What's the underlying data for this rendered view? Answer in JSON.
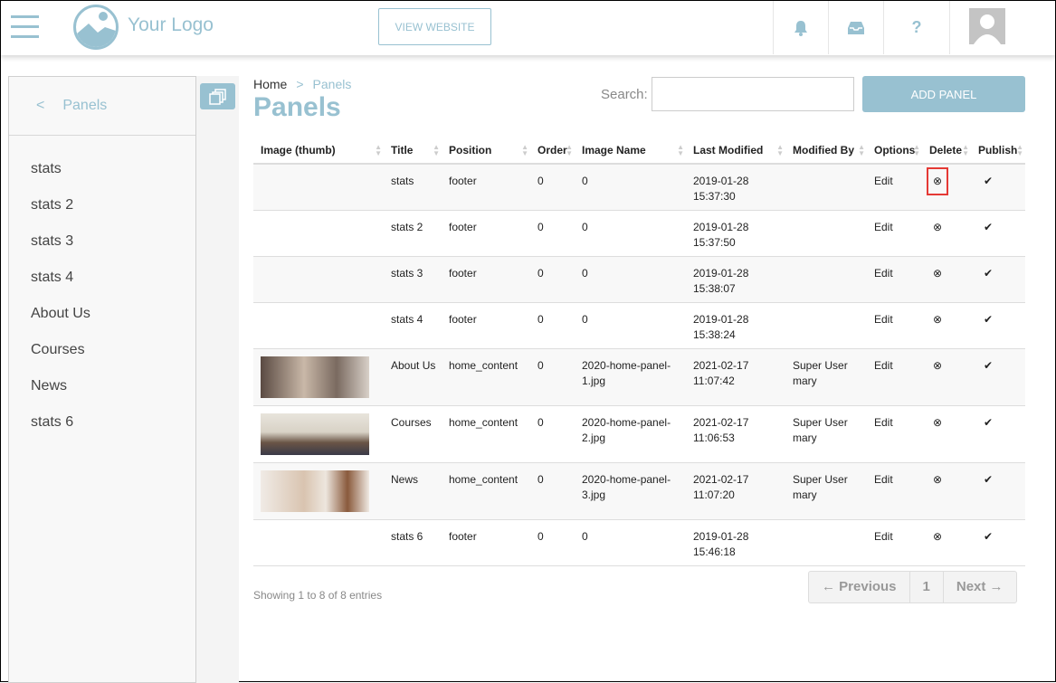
{
  "header": {
    "logo_text": "Your Logo",
    "view_website": "VIEW WEBSITE",
    "icons": [
      "bell-icon",
      "inbox-icon",
      "help-icon"
    ],
    "help_glyph": "?"
  },
  "sidebar": {
    "title": "Panels",
    "back_glyph": "<",
    "items": [
      "stats",
      "stats 2",
      "stats 3",
      "stats 4",
      "About Us",
      "Courses",
      "News",
      "stats 6"
    ]
  },
  "breadcrumb": {
    "home": "Home",
    "sep": ">",
    "current": "Panels"
  },
  "page_title": "Panels",
  "search": {
    "label": "Search:",
    "value": ""
  },
  "add_button": "ADD PANEL",
  "table": {
    "columns": [
      "Image (thumb)",
      "Title",
      "Position",
      "Order",
      "Image Name",
      "Last Modified",
      "Modified By",
      "Options",
      "Delete",
      "Publish"
    ],
    "rows": [
      {
        "image": "",
        "title": "stats",
        "position": "footer",
        "order": "0",
        "image_name": "0",
        "modified": "2019-01-28 15:37:30",
        "by": "",
        "options": "Edit"
      },
      {
        "image": "",
        "title": "stats 2",
        "position": "footer",
        "order": "0",
        "image_name": "0",
        "modified": "2019-01-28 15:37:50",
        "by": "",
        "options": "Edit"
      },
      {
        "image": "",
        "title": "stats 3",
        "position": "footer",
        "order": "0",
        "image_name": "0",
        "modified": "2019-01-28 15:38:07",
        "by": "",
        "options": "Edit"
      },
      {
        "image": "",
        "title": "stats 4",
        "position": "footer",
        "order": "0",
        "image_name": "0",
        "modified": "2019-01-28 15:38:24",
        "by": "",
        "options": "Edit"
      },
      {
        "image": "classroom-photo",
        "title": "About Us",
        "position": "home_content",
        "order": "0",
        "image_name": "2020-home-panel-1.jpg",
        "modified": "2021-02-17 11:07:42",
        "by": "Super User mary",
        "options": "Edit"
      },
      {
        "image": "lecture-photo",
        "title": "Courses",
        "position": "home_content",
        "order": "0",
        "image_name": "2020-home-panel-2.jpg",
        "modified": "2021-02-17 11:06:53",
        "by": "Super User mary",
        "options": "Edit"
      },
      {
        "image": "people-photo",
        "title": "News",
        "position": "home_content",
        "order": "0",
        "image_name": "2020-home-panel-3.jpg",
        "modified": "2021-02-17 11:07:20",
        "by": "Super User mary",
        "options": "Edit"
      },
      {
        "image": "",
        "title": "stats 6",
        "position": "footer",
        "order": "0",
        "image_name": "0",
        "modified": "2019-01-28 15:46:18",
        "by": "",
        "options": "Edit"
      }
    ],
    "delete_glyph": "⊗",
    "publish_glyph": "✔"
  },
  "footer": {
    "showing": "Showing 1 to 8 of 8 entries",
    "prev": "← Previous",
    "page": "1",
    "next": "Next →"
  },
  "colors": {
    "accent": "#98c1d1",
    "highlight": "#e53935"
  }
}
